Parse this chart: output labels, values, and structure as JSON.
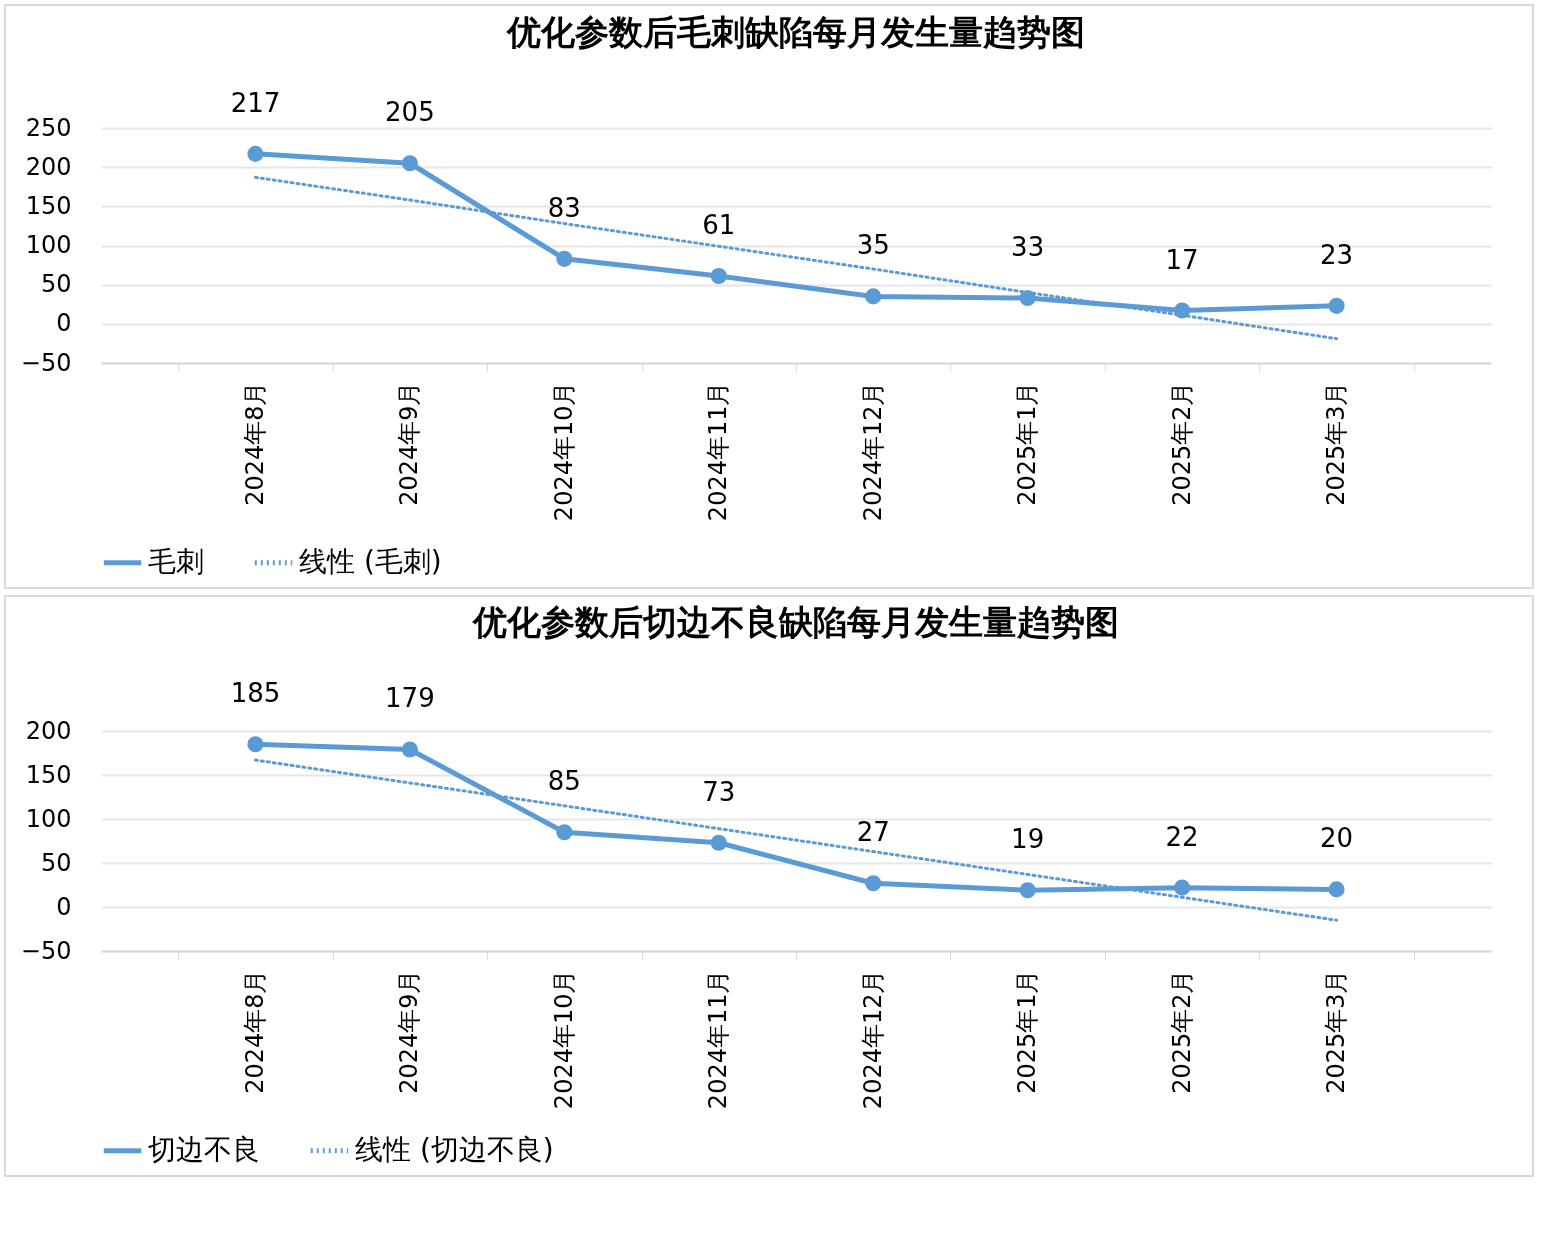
{
  "chart_data": [
    {
      "type": "line",
      "title": "优化参数后毛刺缺陷每月发生量趋势图",
      "categories": [
        "2024年8月",
        "2024年9月",
        "2024年10月",
        "2024年11月",
        "2024年12月",
        "2025年1月",
        "2025年2月",
        "2025年3月"
      ],
      "series": [
        {
          "name": "毛刺",
          "color": "#5b9bd5",
          "marker": "circle",
          "line_style": "solid",
          "values": [
            217,
            205,
            83,
            61,
            35,
            33,
            17,
            23
          ],
          "value_labels": [
            "217",
            "205",
            "83",
            "61",
            "35",
            "33",
            "17",
            "23"
          ]
        },
        {
          "name": "线性 (毛刺)",
          "color": "#5b9bd5",
          "type": "line",
          "marker": "none",
          "line_style": "dotted",
          "values": [
            187,
            158,
            128,
            99,
            70,
            40,
            11,
            -19
          ]
        }
      ],
      "ylim": [
        -50,
        250
      ],
      "yticks": [
        -50,
        0,
        50,
        100,
        150,
        200,
        250
      ],
      "grid": "y",
      "legend": "bottom"
    },
    {
      "type": "line",
      "title": "优化参数后切边不良缺陷每月发生量趋势图",
      "categories": [
        "2024年8月",
        "2024年9月",
        "2024年10月",
        "2024年11月",
        "2024年12月",
        "2025年1月",
        "2025年2月",
        "2025年3月"
      ],
      "series": [
        {
          "name": "切边不良",
          "color": "#5b9bd5",
          "marker": "circle",
          "line_style": "solid",
          "values": [
            185,
            179,
            85,
            73,
            27,
            19,
            22,
            20
          ],
          "value_labels": [
            "185",
            "179",
            "85",
            "73",
            "27",
            "19",
            "22",
            "20"
          ]
        },
        {
          "name": "线性 (切边不良)",
          "color": "#5b9bd5",
          "type": "line",
          "marker": "none",
          "line_style": "dotted",
          "values": [
            167,
            141,
            115,
            89,
            63,
            37,
            11,
            -15
          ]
        }
      ],
      "ylim": [
        -50,
        200
      ],
      "yticks": [
        -50,
        0,
        50,
        100,
        150,
        200
      ],
      "grid": "y",
      "legend": "bottom"
    }
  ]
}
